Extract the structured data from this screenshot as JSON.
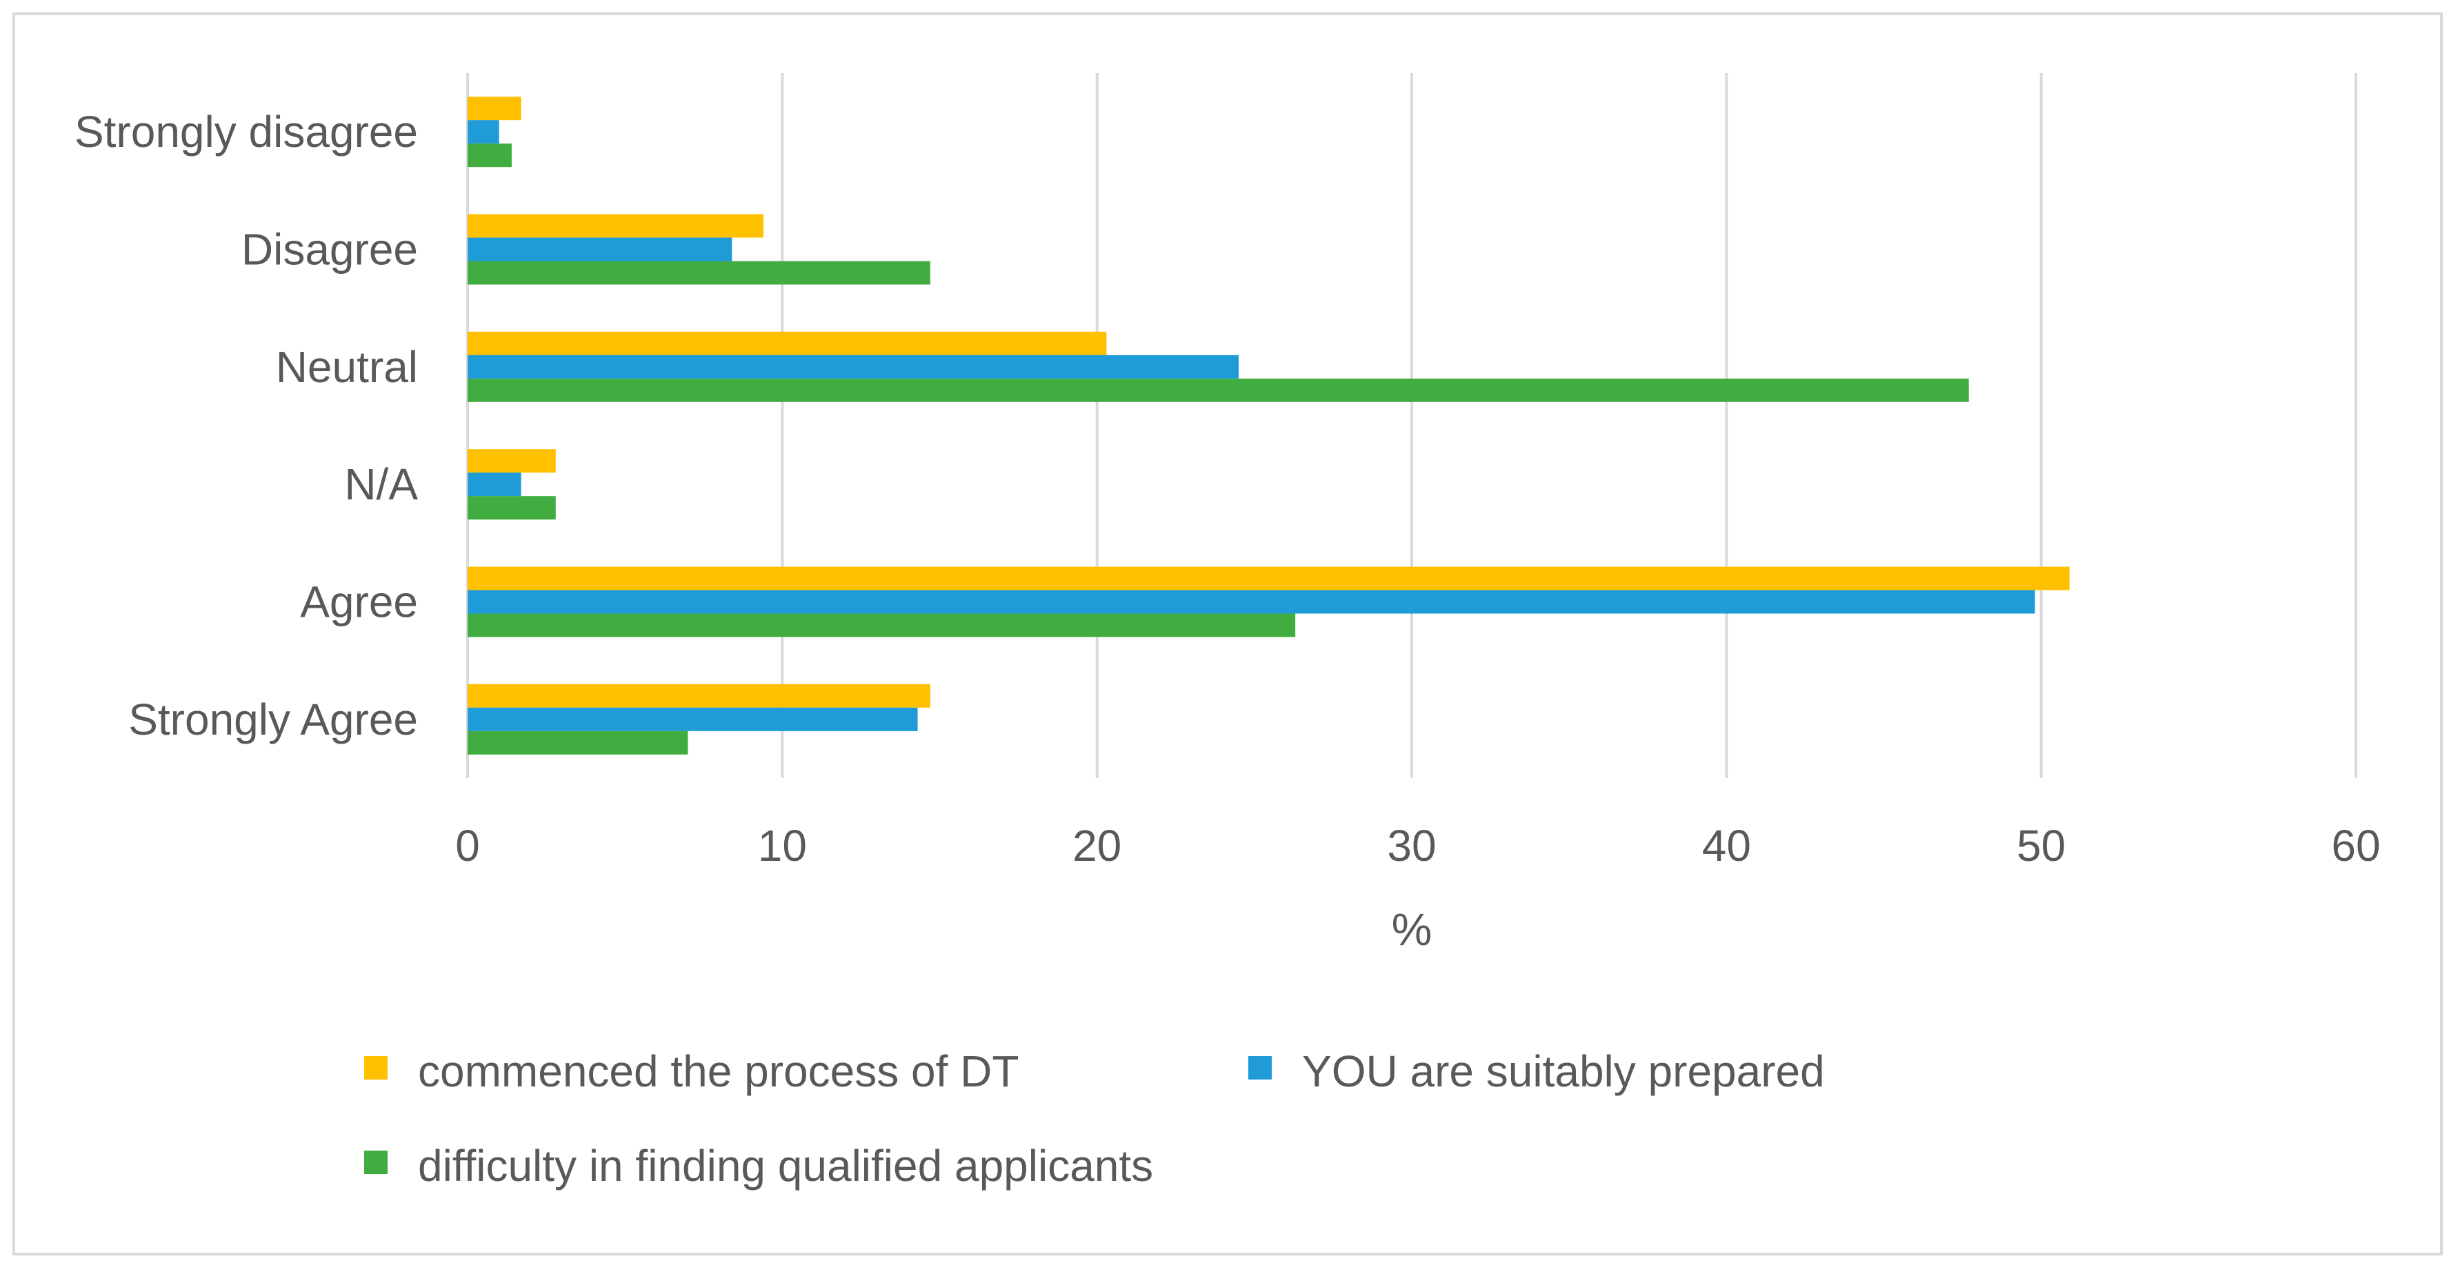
{
  "chart_data": {
    "type": "bar",
    "orientation": "horizontal",
    "title": "",
    "xlabel": "%",
    "ylabel": "",
    "xlim": [
      0,
      60
    ],
    "xticks": [
      0,
      10,
      20,
      30,
      40,
      50,
      60
    ],
    "grid": true,
    "legend_placement": "bottom",
    "categories": [
      "Strongly disagree",
      "Disagree",
      "Neutral",
      "N/A",
      "Agree",
      "Strongly Agree"
    ],
    "series": [
      {
        "name": "commenced the process of DT",
        "color": "#FFC000",
        "values": [
          1.7,
          9.4,
          20.3,
          2.8,
          50.9,
          14.7
        ]
      },
      {
        "name": "YOU are suitably prepared",
        "color": "#1F9BD8",
        "values": [
          1.0,
          8.4,
          24.5,
          1.7,
          49.8,
          14.3
        ]
      },
      {
        "name": "difficulty in finding qualified applicants",
        "color": "#41AD41",
        "values": [
          1.4,
          14.7,
          47.7,
          2.8,
          26.3,
          7.0
        ]
      }
    ]
  }
}
